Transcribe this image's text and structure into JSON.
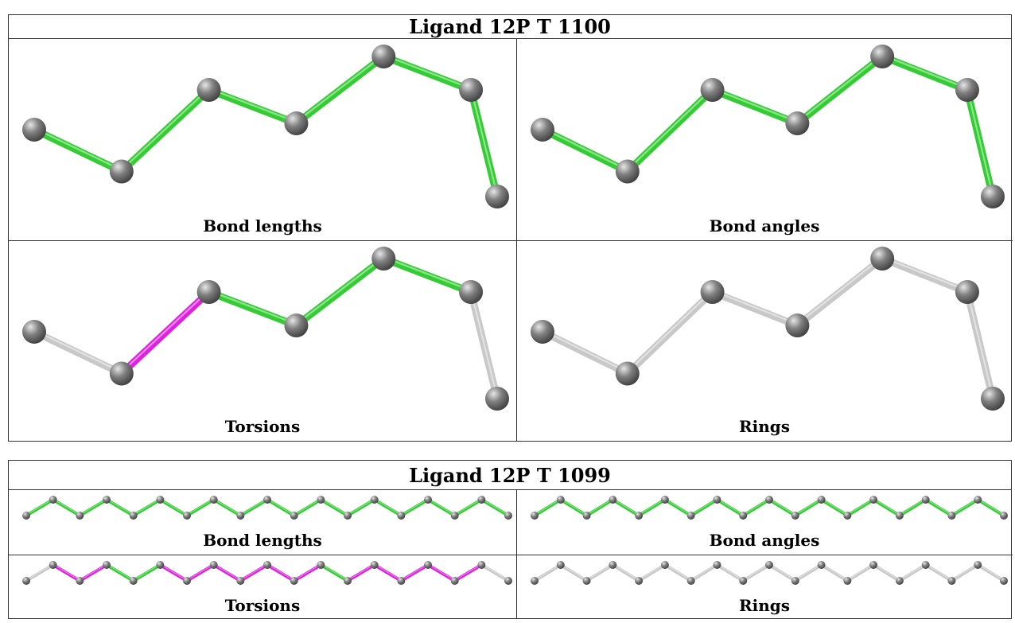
{
  "colors": {
    "bond_ok": "#33cc33",
    "bond_outlier": "#dd22dd",
    "bond_none": "#c8c8c8",
    "atom": "#808080"
  },
  "panels": [
    {
      "title": "Ligand 12P T 1100",
      "atoms": [
        [
          0,
          0.5
        ],
        [
          1,
          0.7
        ],
        [
          2,
          0.31
        ],
        [
          3,
          0.47
        ],
        [
          4,
          0.15
        ],
        [
          5,
          0.31
        ],
        [
          5.3,
          0.82
        ]
      ],
      "cells": [
        {
          "label": "Bond lengths",
          "bonds": [
            "ok",
            "ok",
            "ok",
            "ok",
            "ok",
            "ok"
          ]
        },
        {
          "label": "Bond angles",
          "bonds": [
            "ok",
            "ok",
            "ok",
            "ok",
            "ok",
            "ok"
          ]
        },
        {
          "label": "Torsions",
          "bonds": [
            "none",
            "outlier",
            "ok",
            "ok",
            "ok",
            "none"
          ]
        },
        {
          "label": "Rings",
          "bonds": [
            "none",
            "none",
            "none",
            "none",
            "none",
            "none"
          ]
        }
      ]
    },
    {
      "title": "Ligand 12P T 1099",
      "atoms": [
        [
          0,
          1
        ],
        [
          1,
          0
        ],
        [
          2,
          1
        ],
        [
          3,
          0
        ],
        [
          4,
          1
        ],
        [
          5,
          0
        ],
        [
          6,
          1
        ],
        [
          7,
          0
        ],
        [
          8,
          1
        ],
        [
          9,
          0
        ],
        [
          10,
          1
        ],
        [
          11,
          0
        ],
        [
          12,
          1
        ],
        [
          13,
          0
        ],
        [
          14,
          1
        ],
        [
          15,
          0
        ],
        [
          16,
          1
        ],
        [
          17,
          0
        ],
        [
          18,
          1
        ]
      ],
      "cells": [
        {
          "label": "Bond lengths",
          "bonds": [
            "ok",
            "ok",
            "ok",
            "ok",
            "ok",
            "ok",
            "ok",
            "ok",
            "ok",
            "ok",
            "ok",
            "ok",
            "ok",
            "ok",
            "ok",
            "ok",
            "ok",
            "ok"
          ]
        },
        {
          "label": "Bond angles",
          "bonds": [
            "ok",
            "ok",
            "ok",
            "ok",
            "ok",
            "ok",
            "ok",
            "ok",
            "ok",
            "ok",
            "ok",
            "ok",
            "ok",
            "ok",
            "ok",
            "ok",
            "ok",
            "ok"
          ]
        },
        {
          "label": "Torsions",
          "bonds": [
            "none",
            "outlier",
            "outlier",
            "ok",
            "ok",
            "outlier",
            "outlier",
            "outlier",
            "outlier",
            "outlier",
            "outlier",
            "ok",
            "outlier",
            "outlier",
            "outlier",
            "outlier",
            "outlier",
            "none"
          ]
        },
        {
          "label": "Rings",
          "bonds": [
            "none",
            "none",
            "none",
            "none",
            "none",
            "none",
            "none",
            "none",
            "none",
            "none",
            "none",
            "none",
            "none",
            "none",
            "none",
            "none",
            "none",
            "none"
          ]
        }
      ]
    }
  ]
}
